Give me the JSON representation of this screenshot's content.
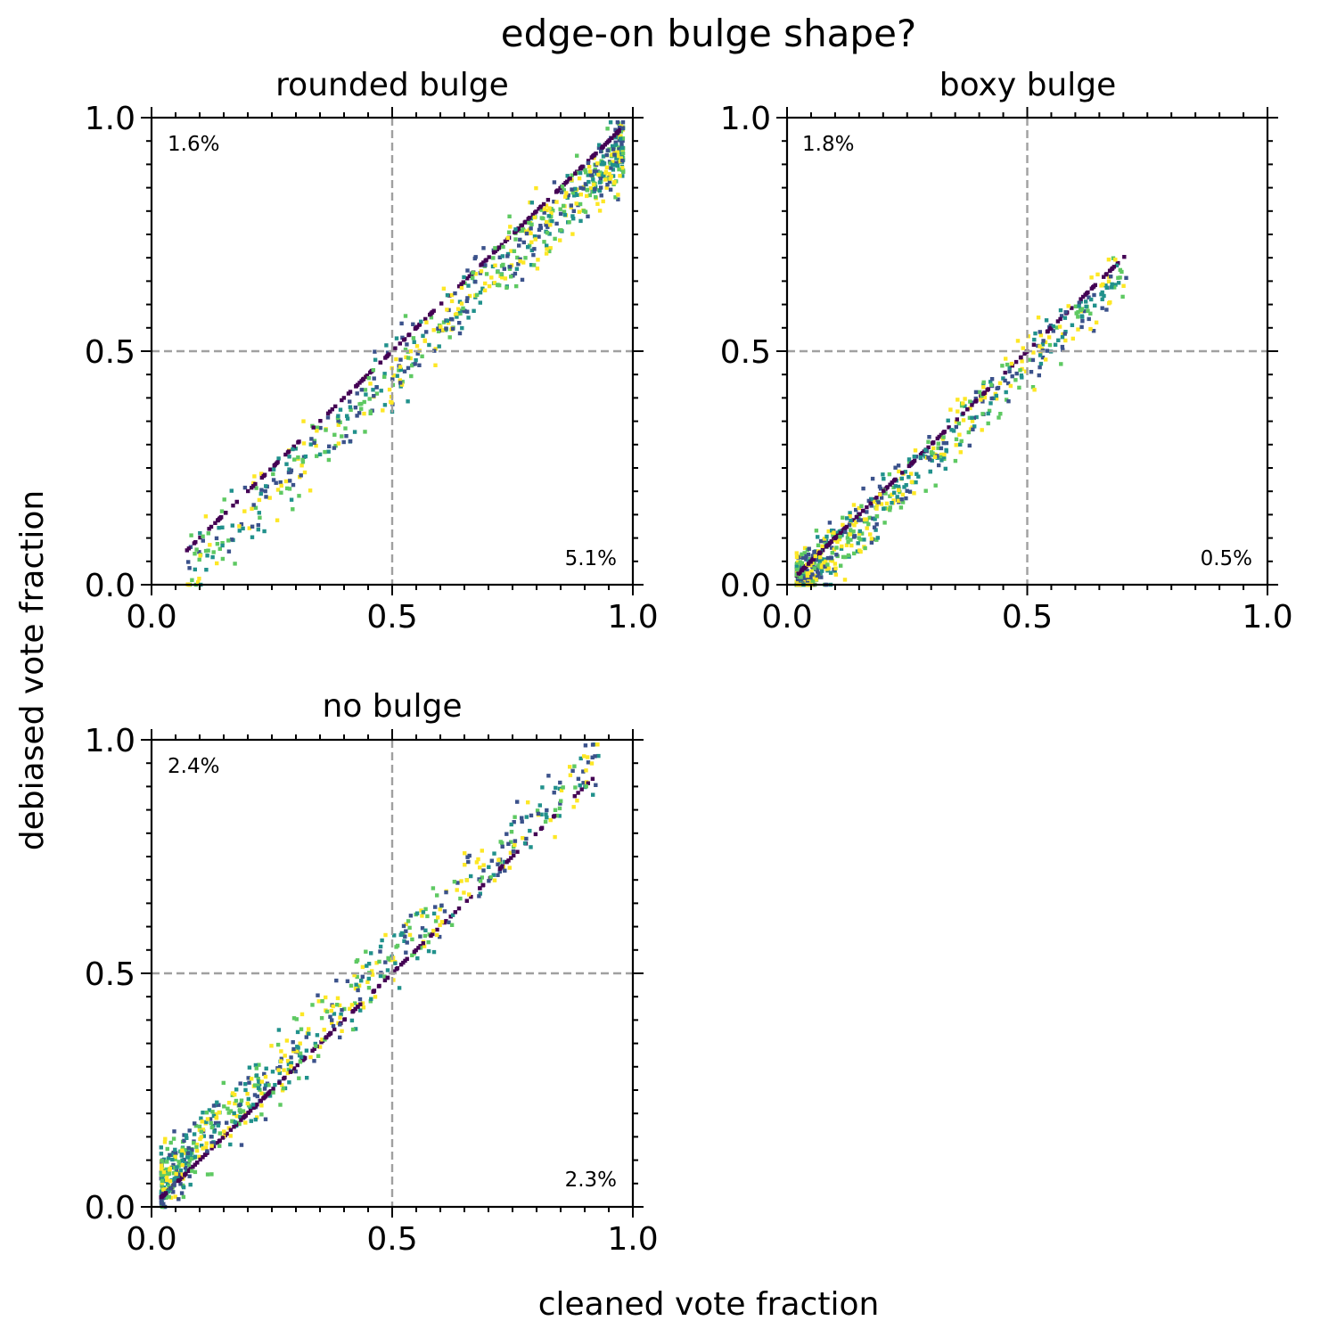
{
  "figure": {
    "suptitle": "edge-on bulge shape?",
    "xlabel": "cleaned vote fraction",
    "ylabel": "debiased vote fraction"
  },
  "colors": {
    "reference_lines": "#a0a0a0",
    "axes": "#000000",
    "viridis": [
      "#440154",
      "#3b528b",
      "#21918c",
      "#5ec962",
      "#fde725"
    ]
  },
  "chart_data": [
    {
      "type": "scatter",
      "title": "rounded bulge",
      "xlim": [
        0,
        1
      ],
      "ylim": [
        0,
        1
      ],
      "xticks": [
        "0.0",
        "0.5",
        "1.0"
      ],
      "yticks": [
        "0.0",
        "0.5",
        "1.0"
      ],
      "reference_lines": {
        "x": 0.5,
        "y": 0.5,
        "style": "dashed"
      },
      "annotation_top_left": "1.6%",
      "annotation_bottom_right": "5.1%",
      "distribution": {
        "x_range": [
          0.07,
          0.98
        ],
        "density_peak_x": 0.85,
        "offset_below": 0.06
      }
    },
    {
      "type": "scatter",
      "title": "boxy bulge",
      "xlim": [
        0,
        1
      ],
      "ylim": [
        0,
        1
      ],
      "xticks": [
        "0.0",
        "0.5",
        "1.0"
      ],
      "yticks": [
        "0.0",
        "0.5",
        "1.0"
      ],
      "reference_lines": {
        "x": 0.5,
        "y": 0.5,
        "style": "dashed"
      },
      "annotation_top_left": "1.8%",
      "annotation_bottom_right": "0.5%",
      "distribution": {
        "x_range": [
          0.02,
          0.71
        ],
        "density_peak_x": 0.05,
        "offset_below": 0.03
      }
    },
    {
      "type": "scatter",
      "title": "no bulge",
      "xlim": [
        0,
        1
      ],
      "ylim": [
        0,
        1
      ],
      "xticks": [
        "0.0",
        "0.5",
        "1.0"
      ],
      "yticks": [
        "0.0",
        "0.5",
        "1.0"
      ],
      "reference_lines": {
        "x": 0.5,
        "y": 0.5,
        "style": "dashed"
      },
      "annotation_top_left": "2.4%",
      "annotation_bottom_right": "2.3%",
      "distribution": {
        "x_range": [
          0.02,
          0.93
        ],
        "density_peak_x": 0.06,
        "offset_below": -0.04
      }
    }
  ]
}
